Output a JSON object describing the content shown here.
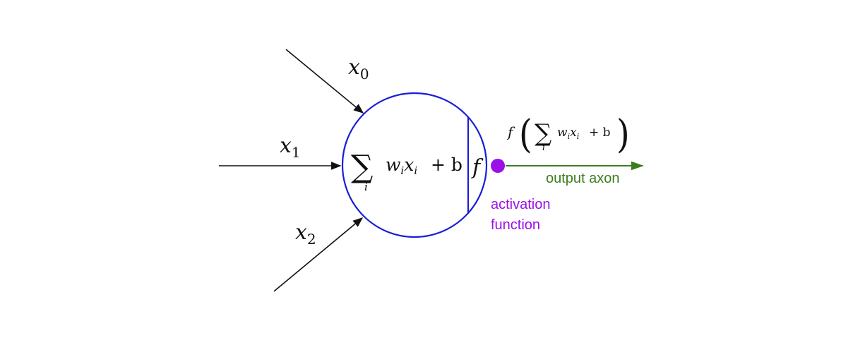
{
  "colors": {
    "neuron": "#1a1fd6",
    "activation": "#9a10e6",
    "output": "#3b7d1e",
    "ink": "#111111"
  },
  "inputs": [
    {
      "name": "x",
      "sub": "0"
    },
    {
      "name": "x",
      "sub": "1"
    },
    {
      "name": "x",
      "sub": "2"
    }
  ],
  "neuron": {
    "sum_symbol": "∑",
    "sum_index": "i",
    "w": "w",
    "x": "x",
    "term_sub": "i",
    "plus_b": "+ b",
    "activation_symbol": "f"
  },
  "output_formula": {
    "f": "f",
    "open_paren": "(",
    "sum_symbol": "∑",
    "sum_index": "i",
    "w": "w",
    "x": "x",
    "term_sub": "i",
    "plus_b": "+ b",
    "close_paren": ")"
  },
  "labels": {
    "activation_line1": "activation",
    "activation_line2": "function",
    "output_axon": "output axon"
  }
}
